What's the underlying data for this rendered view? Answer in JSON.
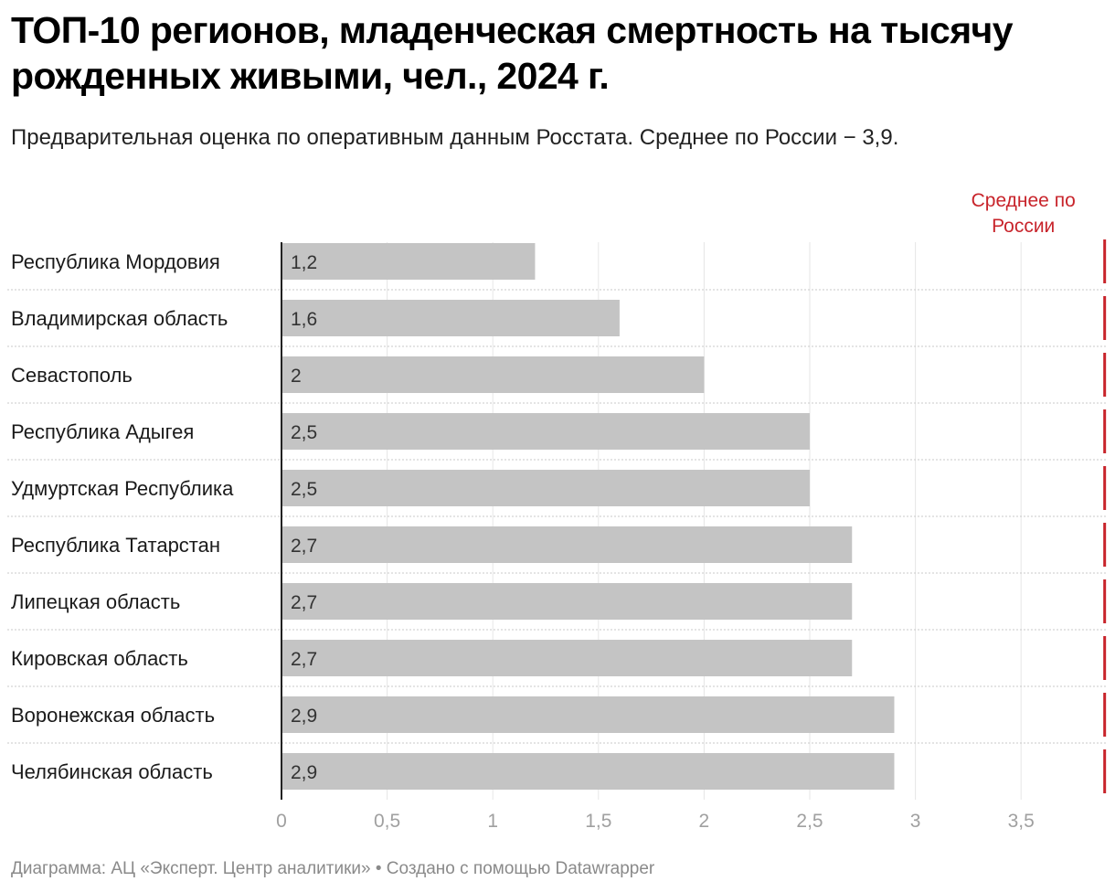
{
  "chart_data": {
    "type": "bar",
    "orientation": "horizontal",
    "title": "ТОП-10 регионов, младенческая смертность на тысячу рожденных живыми, чел., 2024 г.",
    "subtitle": "Предварительная оценка по оперативным данным Росстата. Среднее по России − 3,9.",
    "categories": [
      "Республика Мордовия",
      "Владимирская область",
      "Севастополь",
      "Республика Адыгея",
      "Удмуртская Республика",
      "Республика Татарстан",
      "Липецкая область",
      "Кировская область",
      "Воронежская область",
      "Челябинская область"
    ],
    "values": [
      1.2,
      1.6,
      2,
      2.5,
      2.5,
      2.7,
      2.7,
      2.7,
      2.9,
      2.9
    ],
    "value_labels": [
      "1,2",
      "1,6",
      "2",
      "2,5",
      "2,5",
      "2,7",
      "2,7",
      "2,7",
      "2,9",
      "2,9"
    ],
    "xlim": [
      0,
      3.9
    ],
    "xticks": [
      0,
      0.5,
      1,
      1.5,
      2,
      2.5,
      3,
      3.5
    ],
    "xtick_labels": [
      "0",
      "0,5",
      "1",
      "1,5",
      "2",
      "2,5",
      "3",
      "3,5"
    ],
    "reference_line": {
      "value": 3.9,
      "label_line1": "Среднее по",
      "label_line2": "России",
      "color": "#c8242b"
    },
    "bar_color": "#c4c4c4",
    "grid": true,
    "footer": "Диаграмма: АЦ «Эксперт. Центр аналитики» • Создано с помощью Datawrapper"
  }
}
